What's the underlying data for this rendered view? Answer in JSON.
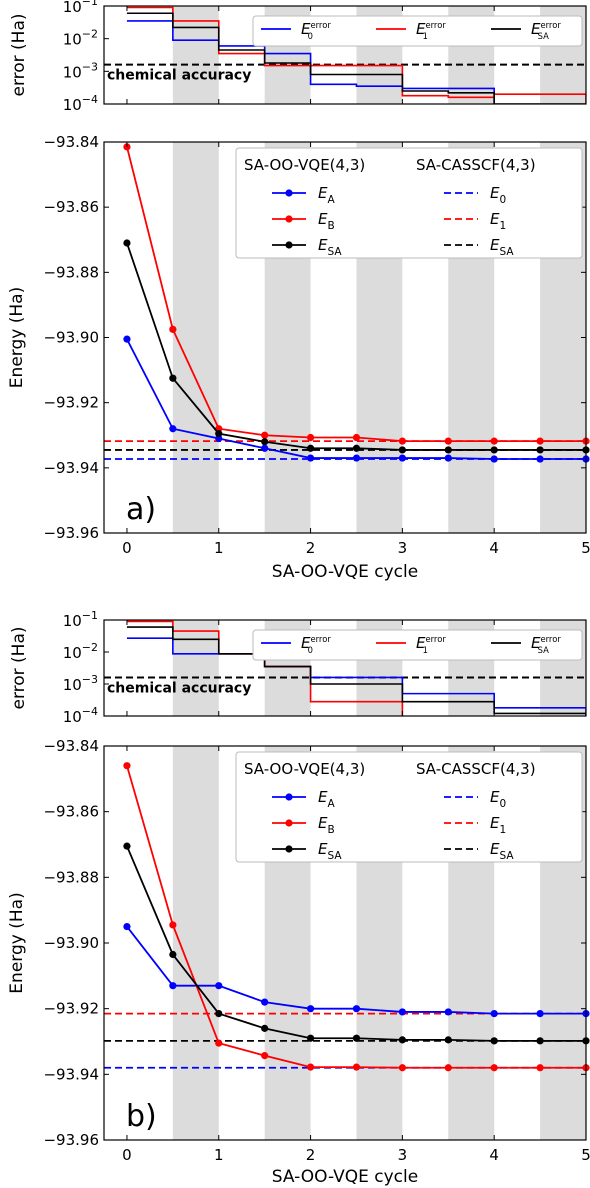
{
  "chart_data": [
    {
      "panel": "a",
      "panel_label": "a)",
      "x_cycles": [
        0,
        0.5,
        1,
        1.5,
        2,
        2.5,
        3,
        3.5,
        4,
        4.5,
        5
      ],
      "error_plot": {
        "type": "line",
        "ylabel": "error (Ha)",
        "yscale": "log",
        "ylim": [
          0.0001,
          0.1
        ],
        "yticks": [
          "10^-1",
          "10^-2",
          "10^-3",
          "10^-4"
        ],
        "chemical_accuracy": 0.0016,
        "chemical_accuracy_label": "chemical accuracy",
        "legend_position": "top-right",
        "series": [
          {
            "name": "E_0^error",
            "color": "#0000ff",
            "steps": [
              0.035,
              0.009,
              0.006,
              0.0035,
              0.0004,
              0.00035,
              0.0003,
              0.0003,
              5e-05,
              5e-05,
              5e-05
            ]
          },
          {
            "name": "E_1^error",
            "color": "#ff0000",
            "steps": [
              0.09,
              0.035,
              0.0035,
              0.0015,
              0.0015,
              0.0015,
              0.00018,
              0.00016,
              0.0002,
              0.0002,
              5e-05
            ]
          },
          {
            "name": "E_SA^error",
            "color": "#000000",
            "steps": [
              0.06,
              0.022,
              0.0045,
              0.0018,
              0.0008,
              0.0008,
              0.00025,
              0.00022,
              0.0001,
              0.0001,
              0.0001
            ]
          }
        ]
      },
      "energy_plot": {
        "type": "line",
        "xlabel": "SA-OO-VQE cycle",
        "ylabel": "Energy (Ha)",
        "xlim": [
          -0.25,
          5
        ],
        "ylim": [
          -93.96,
          -93.84
        ],
        "xticks": [
          "0",
          "1",
          "2",
          "3",
          "4",
          "5"
        ],
        "yticks": [
          "−93.84",
          "−93.86",
          "−93.88",
          "−93.90",
          "−93.92",
          "−93.94",
          "−93.96"
        ],
        "legend_position": "top-right",
        "legend_titles": [
          "SA-OO-VQE(4,3)",
          "SA-CASSCF(4,3)"
        ],
        "series": [
          {
            "name": "E_A",
            "color": "#0000ff",
            "values": [
              -93.9005,
              -93.928,
              -93.931,
              -93.934,
              -93.937,
              -93.937,
              -93.937,
              -93.937,
              -93.9373,
              -93.9373,
              -93.9373
            ]
          },
          {
            "name": "E_B",
            "color": "#ff0000",
            "values": [
              -93.8415,
              -93.8975,
              -93.928,
              -93.93,
              -93.9307,
              -93.9307,
              -93.9318,
              -93.9318,
              -93.9318,
              -93.9318,
              -93.9318
            ]
          },
          {
            "name": "E_SA",
            "color": "#000000",
            "values": [
              -93.871,
              -93.9125,
              -93.9295,
              -93.932,
              -93.934,
              -93.934,
              -93.9345,
              -93.9345,
              -93.9345,
              -93.9345,
              -93.9345
            ]
          }
        ],
        "references": [
          {
            "name": "E_0",
            "color": "#0000ff",
            "value": -93.9373
          },
          {
            "name": "E_1",
            "color": "#ff0000",
            "value": -93.9318
          },
          {
            "name": "E_SA",
            "color": "#000000",
            "value": -93.9345
          }
        ]
      }
    },
    {
      "panel": "b",
      "panel_label": "b)",
      "x_cycles": [
        0,
        0.5,
        1,
        1.5,
        2,
        2.5,
        3,
        3.5,
        4,
        4.5,
        5
      ],
      "error_plot": {
        "type": "line",
        "ylabel": "error (Ha)",
        "yscale": "log",
        "ylim": [
          0.0001,
          0.1
        ],
        "yticks": [
          "10^-1",
          "10^-2",
          "10^-3",
          "10^-4"
        ],
        "chemical_accuracy": 0.0016,
        "chemical_accuracy_label": "chemical accuracy",
        "legend_position": "top-right",
        "series": [
          {
            "name": "E_0^error",
            "color": "#0000ff",
            "steps": [
              0.027,
              0.0088,
              0.0088,
              0.0035,
              0.0016,
              0.0016,
              0.0005,
              0.0005,
              0.00018,
              0.00018,
              8e-05
            ]
          },
          {
            "name": "E_1^error",
            "color": "#ff0000",
            "steps": [
              0.09,
              0.045,
              0.0088,
              0.0035,
              0.00028,
              0.00028,
              8e-05,
              8e-05,
              8e-05,
              8e-05,
              8e-05
            ]
          },
          {
            "name": "E_SA^error",
            "color": "#000000",
            "steps": [
              0.06,
              0.025,
              0.0088,
              0.0035,
              0.001,
              0.001,
              0.00028,
              0.00028,
              0.00012,
              0.00012,
              8e-05
            ]
          }
        ]
      },
      "energy_plot": {
        "type": "line",
        "xlabel": "SA-OO-VQE cycle",
        "ylabel": "Energy (Ha)",
        "xlim": [
          -0.25,
          5
        ],
        "ylim": [
          -93.96,
          -93.84
        ],
        "xticks": [
          "0",
          "1",
          "2",
          "3",
          "4",
          "5"
        ],
        "yticks": [
          "−93.84",
          "−93.86",
          "−93.88",
          "−93.90",
          "−93.92",
          "−93.94",
          "−93.96"
        ],
        "legend_position": "top-right",
        "legend_titles": [
          "SA-OO-VQE(4,3)",
          "SA-CASSCF(4,3)"
        ],
        "series": [
          {
            "name": "E_A",
            "color": "#0000ff",
            "values": [
              -93.895,
              -93.913,
              -93.913,
              -93.918,
              -93.92,
              -93.92,
              -93.921,
              -93.921,
              -93.9215,
              -93.9215,
              -93.9215
            ]
          },
          {
            "name": "E_B",
            "color": "#ff0000",
            "values": [
              -93.846,
              -93.8945,
              -93.9305,
              -93.9343,
              -93.9378,
              -93.9378,
              -93.938,
              -93.938,
              -93.938,
              -93.938,
              -93.938
            ]
          },
          {
            "name": "E_SA",
            "color": "#000000",
            "values": [
              -93.8705,
              -93.9035,
              -93.9215,
              -93.926,
              -93.929,
              -93.929,
              -93.9295,
              -93.9295,
              -93.9298,
              -93.9298,
              -93.9298
            ]
          }
        ],
        "references": [
          {
            "name": "E_0",
            "color": "#0000ff",
            "value": -93.938
          },
          {
            "name": "E_1",
            "color": "#ff0000",
            "value": -93.9215
          },
          {
            "name": "E_SA",
            "color": "#000000",
            "value": -93.9298
          }
        ]
      }
    }
  ]
}
